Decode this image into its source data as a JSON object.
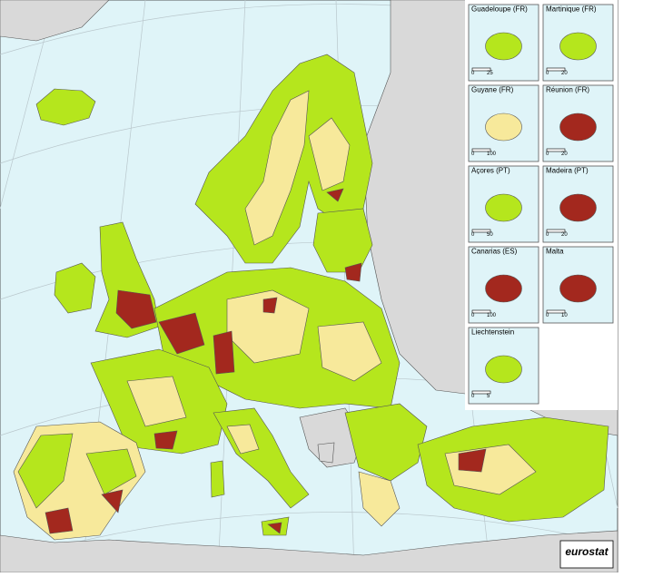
{
  "insets": [
    {
      "label": "Guadeloupe (FR)",
      "scale": [
        0,
        25
      ]
    },
    {
      "label": "Martinique (FR)",
      "scale": [
        0,
        20
      ]
    },
    {
      "label": "Guyane (FR)",
      "scale": [
        0,
        100
      ]
    },
    {
      "label": "Réunion (FR)",
      "scale": [
        0,
        20
      ]
    },
    {
      "label": "Açores (PT)",
      "scale": [
        0,
        50
      ]
    },
    {
      "label": "Madeira (PT)",
      "scale": [
        0,
        20
      ]
    },
    {
      "label": "Canarias (ES)",
      "scale": [
        0,
        100
      ]
    },
    {
      "label": "Malta",
      "scale": [
        0,
        10
      ]
    },
    {
      "label": "Liechtenstein",
      "scale": [
        0,
        5
      ]
    }
  ],
  "logo": "eurostat"
}
